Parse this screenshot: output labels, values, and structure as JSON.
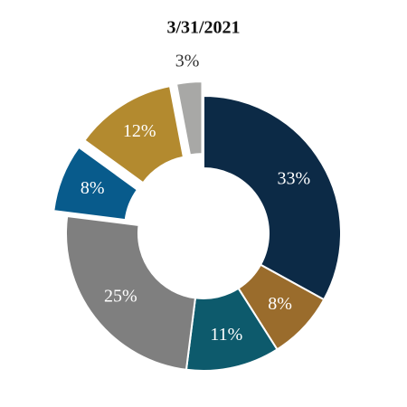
{
  "chart_data": {
    "type": "donut",
    "title": "3/31/2021",
    "values": [
      33,
      8,
      11,
      25,
      8,
      12,
      3
    ],
    "value_labels": [
      "33%",
      "8%",
      "11%",
      "25%",
      "8%",
      "12%",
      "3%"
    ],
    "colors": [
      "#0c2a46",
      "#9a6c2c",
      "#0d5a6c",
      "#7f7f7f",
      "#085b8c",
      "#b38a2f",
      "#a8a8a6"
    ],
    "explode": [
      false,
      false,
      false,
      false,
      true,
      true,
      true
    ]
  }
}
